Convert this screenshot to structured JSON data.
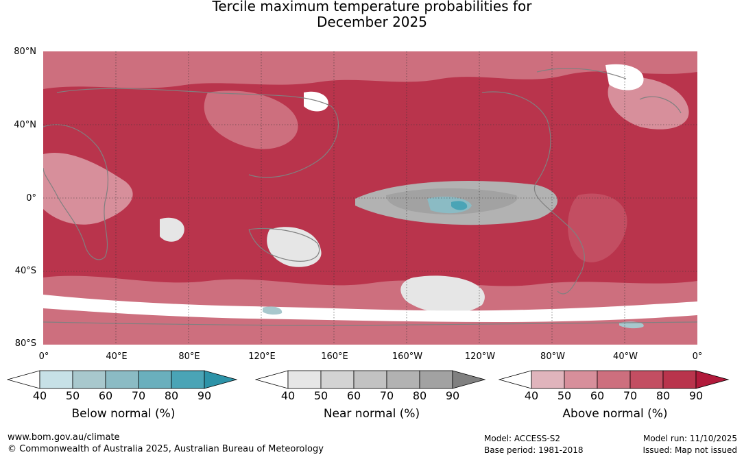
{
  "title": {
    "line1": "Tercile maximum temperature probabilities for",
    "line2": "December 2025"
  },
  "map": {
    "lat_labels": [
      "80°N",
      "40°N",
      "0°",
      "40°S",
      "80°S"
    ],
    "lon_labels": [
      "0°",
      "40°E",
      "80°E",
      "120°E",
      "160°E",
      "160°W",
      "120°W",
      "80°W",
      "40°W",
      "0°"
    ],
    "grid": true,
    "coastline_color": "#808080"
  },
  "legends": [
    {
      "name": "below",
      "title": "Below normal (%)",
      "ticks": [
        "40",
        "50",
        "60",
        "70",
        "80",
        "90"
      ],
      "colors": [
        "#ffffff",
        "#c7e1e7",
        "#a8c8cd",
        "#8bbbc4",
        "#6aafbd",
        "#4aa4b6",
        "#2d93a8"
      ]
    },
    {
      "name": "near",
      "title": "Near normal (%)",
      "ticks": [
        "40",
        "50",
        "60",
        "70",
        "80",
        "90"
      ],
      "colors": [
        "#ffffff",
        "#e6e6e6",
        "#d3d3d3",
        "#c2c2c2",
        "#b2b2b2",
        "#a2a2a2",
        "#808080"
      ]
    },
    {
      "name": "above",
      "title": "Above normal (%)",
      "ticks": [
        "40",
        "50",
        "60",
        "70",
        "80",
        "90"
      ],
      "colors": [
        "#ffffff",
        "#e0b4bc",
        "#d78f9b",
        "#cd6f7e",
        "#c34e62",
        "#b9344c",
        "#b11a3b"
      ]
    }
  ],
  "footer": {
    "website": "www.bom.gov.au/climate",
    "copyright": "© Commonwealth of Australia 2025, Australian Bureau of Meteorology",
    "model": "Model: ACCESS-S2",
    "base_period": "Base period: 1981-2018",
    "model_run": "Model run: 11/10/2025",
    "issued": "Issued: Map not issued"
  }
}
